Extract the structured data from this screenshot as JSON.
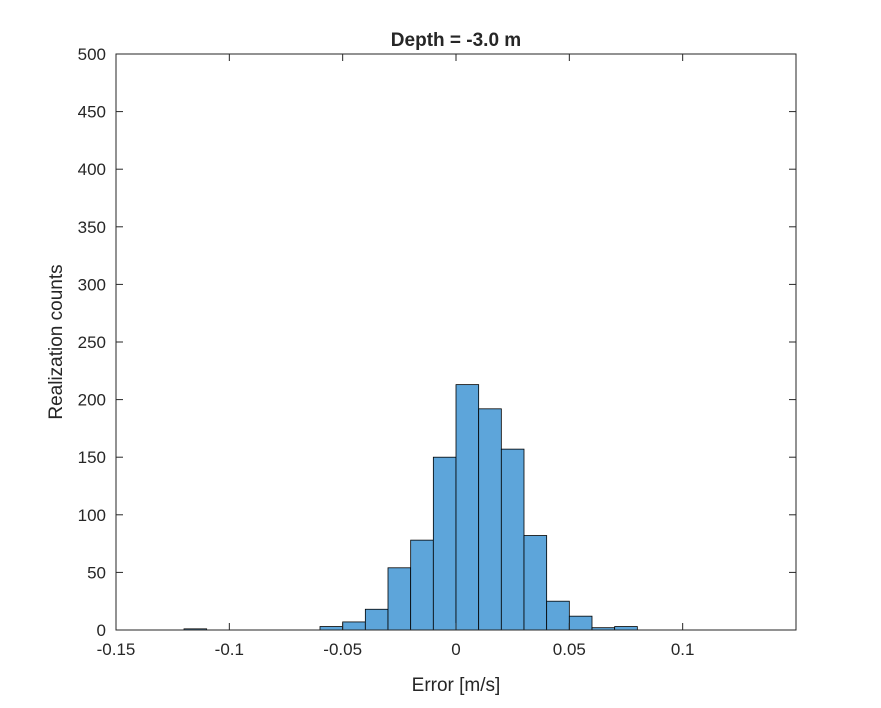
{
  "chart_data": {
    "type": "bar",
    "title": "Depth = -3.0 m",
    "xlabel": "Error [m/s]",
    "ylabel": "Realization counts",
    "xlim": [
      -0.15,
      0.15
    ],
    "ylim": [
      0,
      500
    ],
    "xticks": [
      "-0.15",
      "-0.1",
      "-0.05",
      "0",
      "0.05",
      "0.1"
    ],
    "xtick_values": [
      -0.15,
      -0.1,
      -0.05,
      0,
      0.05,
      0.1
    ],
    "yticks": [
      "0",
      "50",
      "100",
      "150",
      "200",
      "250",
      "300",
      "350",
      "400",
      "450",
      "500"
    ],
    "ytick_values": [
      0,
      50,
      100,
      150,
      200,
      250,
      300,
      350,
      400,
      450,
      500
    ],
    "bin_width": 0.01,
    "bin_left_edges": [
      -0.12,
      -0.06,
      -0.05,
      -0.04,
      -0.03,
      -0.02,
      -0.01,
      0.0,
      0.01,
      0.02,
      0.03,
      0.04,
      0.05,
      0.06,
      0.07
    ],
    "values": [
      1,
      3,
      7,
      18,
      54,
      78,
      150,
      213,
      192,
      157,
      82,
      25,
      12,
      2,
      3
    ],
    "bar_color": "#5DA5DA",
    "edge_color": "#000000",
    "grid": false
  }
}
